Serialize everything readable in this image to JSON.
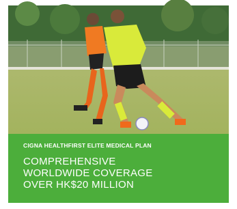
{
  "banner": {
    "plan_name": "CIGNA HEALTHFIRST ELITE MEDICAL PLAN",
    "headline": [
      "COMPREHENSIVE",
      "WORLDWIDE COVERAGE",
      "OVER HK$20 MILLION"
    ]
  }
}
